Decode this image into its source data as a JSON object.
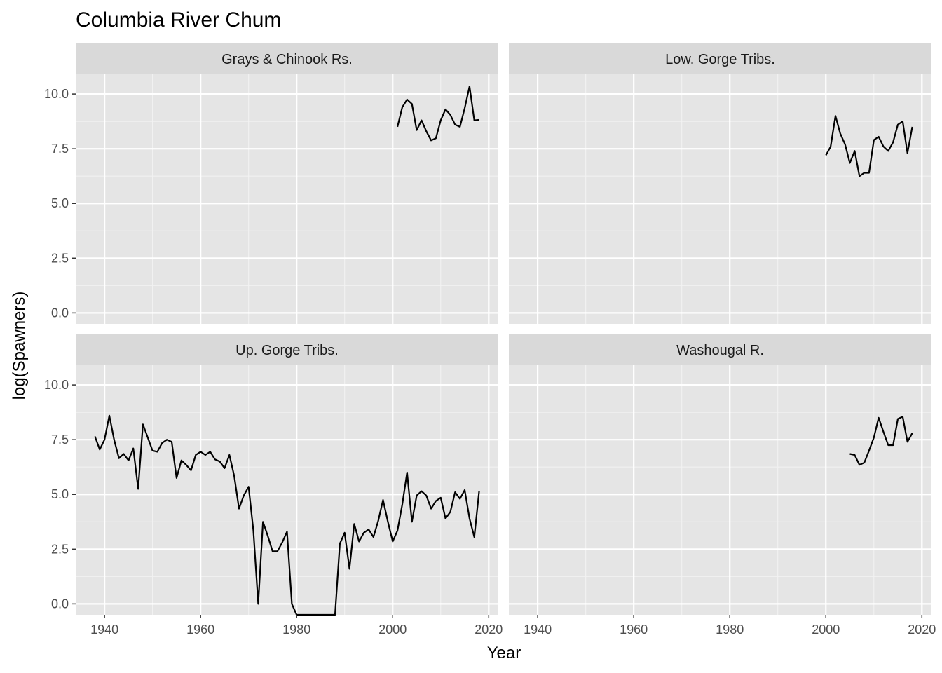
{
  "chart_data": {
    "type": "line",
    "title": "Columbia River Chum",
    "xlabel": "Year",
    "ylabel": "log(Spawners)",
    "xlim": [
      1934,
      2022
    ],
    "ylim": [
      -0.5,
      10.9
    ],
    "x_ticks": [
      1940,
      1960,
      1980,
      2000,
      2020
    ],
    "y_ticks": [
      0,
      2.5,
      5,
      7.5,
      10
    ],
    "y_tick_labels": [
      "0.0",
      "2.5",
      "5.0",
      "7.5",
      "10.0"
    ],
    "grid": true,
    "facets": [
      {
        "name": "Grays & Chinook Rs.",
        "x": [
          2001,
          2002,
          2003,
          2004,
          2005,
          2006,
          2007,
          2008,
          2009,
          2010,
          2011,
          2012,
          2013,
          2014,
          2015,
          2016,
          2017,
          2018
        ],
        "y": [
          8.5,
          9.4,
          9.75,
          9.55,
          8.35,
          8.8,
          8.3,
          7.88,
          7.98,
          8.8,
          9.3,
          9.05,
          8.6,
          8.5,
          9.35,
          10.35,
          8.8,
          8.82
        ]
      },
      {
        "name": "Low. Gorge Tribs.",
        "x": [
          2000,
          2001,
          2002,
          2003,
          2004,
          2005,
          2006,
          2007,
          2008,
          2009,
          2010,
          2011,
          2012,
          2013,
          2014,
          2015,
          2016,
          2017,
          2018
        ],
        "y": [
          7.2,
          7.6,
          9.0,
          8.2,
          7.7,
          6.85,
          7.4,
          6.25,
          6.4,
          6.4,
          7.9,
          8.05,
          7.6,
          7.4,
          7.8,
          8.6,
          8.75,
          7.3,
          8.5
        ]
      },
      {
        "name": "Up. Gorge Tribs.",
        "x": [
          1938,
          1939,
          1940,
          1941,
          1942,
          1943,
          1944,
          1945,
          1946,
          1947,
          1948,
          1949,
          1950,
          1951,
          1952,
          1953,
          1954,
          1955,
          1956,
          1957,
          1958,
          1959,
          1960,
          1961,
          1962,
          1963,
          1964,
          1965,
          1966,
          1967,
          1968,
          1969,
          1970,
          1971,
          1972,
          1973,
          1974,
          1975,
          1976,
          1977,
          1978,
          1979,
          1980,
          1981,
          1982,
          1983,
          1984,
          1985,
          1986,
          1987,
          1988,
          1989,
          1990,
          1991,
          1992,
          1993,
          1994,
          1995,
          1996,
          1997,
          1998,
          1999,
          2000,
          2001,
          2002,
          2003,
          2004,
          2005,
          2006,
          2007,
          2008,
          2009,
          2010,
          2011,
          2012,
          2013,
          2014,
          2015,
          2016,
          2017,
          2018
        ],
        "y": [
          7.65,
          7.05,
          7.5,
          8.6,
          7.5,
          6.65,
          6.85,
          6.55,
          7.1,
          5.25,
          8.2,
          7.6,
          7.0,
          6.95,
          7.35,
          7.5,
          7.4,
          5.75,
          6.55,
          6.35,
          6.1,
          6.8,
          6.95,
          6.8,
          6.95,
          6.6,
          6.5,
          6.2,
          6.8,
          5.85,
          4.35,
          4.95,
          5.35,
          3.35,
          0.0,
          3.75,
          3.1,
          2.4,
          2.4,
          2.8,
          3.3,
          0.0,
          -0.5,
          -0.5,
          -0.5,
          -0.5,
          -0.5,
          -0.5,
          -0.5,
          -0.5,
          -0.5,
          2.75,
          3.25,
          1.6,
          3.65,
          2.85,
          3.25,
          3.4,
          3.05,
          3.8,
          4.75,
          3.75,
          2.85,
          3.35,
          4.55,
          6.0,
          3.75,
          4.95,
          5.15,
          4.95,
          4.35,
          4.7,
          4.85,
          3.9,
          4.2,
          5.1,
          4.8,
          5.2,
          3.9,
          3.05,
          5.15
        ]
      },
      {
        "name": "Washougal R.",
        "x": [
          2005,
          2006,
          2007,
          2008,
          2009,
          2010,
          2011,
          2012,
          2013,
          2014,
          2015,
          2016,
          2017,
          2018
        ],
        "y": [
          6.85,
          6.8,
          6.35,
          6.45,
          7.0,
          7.6,
          8.5,
          7.85,
          7.25,
          7.25,
          8.45,
          8.55,
          7.4,
          7.8
        ]
      }
    ]
  }
}
